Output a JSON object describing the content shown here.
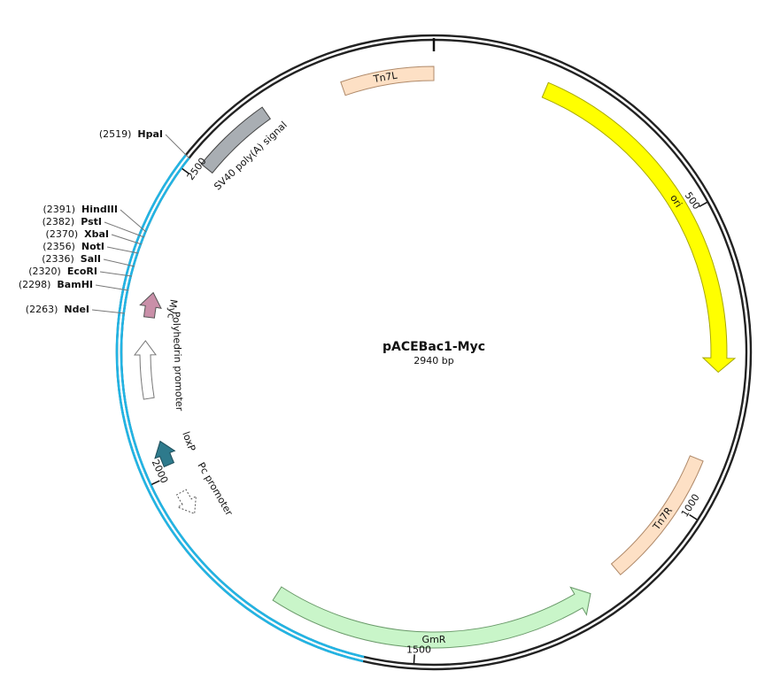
{
  "title": "pACEBac1-Myc",
  "length": "2940 bp",
  "features": [
    {
      "label": "Tn7L"
    },
    {
      "label": "ori"
    },
    {
      "label": "Tn7R"
    },
    {
      "label": "GmR"
    },
    {
      "label": "SV40 poly(A) signal"
    },
    {
      "label": "Myc"
    },
    {
      "label": "Polyhedrin promoter"
    },
    {
      "label": "loxP"
    },
    {
      "label": "Pc promoter"
    }
  ],
  "sites": [
    {
      "position": "(2519)",
      "name": "HpaI"
    },
    {
      "position": "(2391)",
      "name": "HindIII"
    },
    {
      "position": "(2382)",
      "name": "PstI"
    },
    {
      "position": "(2370)",
      "name": "XbaI"
    },
    {
      "position": "(2356)",
      "name": "NotI"
    },
    {
      "position": "(2336)",
      "name": "SalI"
    },
    {
      "position": "(2320)",
      "name": "EcoRI"
    },
    {
      "position": "(2298)",
      "name": "BamHI"
    },
    {
      "position": "(2263)",
      "name": "NdeI"
    }
  ],
  "ticks": [
    "500",
    "1000",
    "1500",
    "2000",
    "2500"
  ]
}
